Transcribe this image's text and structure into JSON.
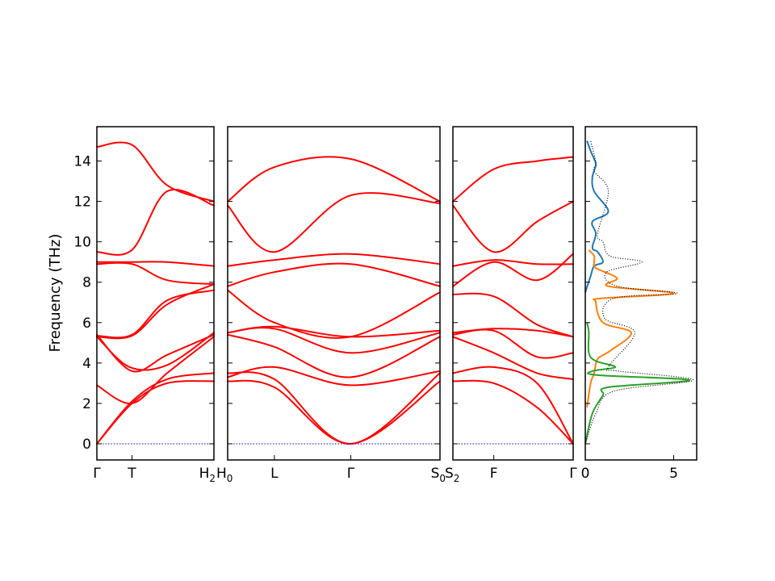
{
  "chart_data": [
    {
      "type": "line",
      "title": "",
      "ylabel": "Frequency (THz)",
      "ylim": [
        -0.8,
        15.7
      ],
      "yticks": [
        0,
        2,
        4,
        6,
        8,
        10,
        12,
        14
      ],
      "segments": [
        {
          "path": [
            "Γ",
            "T",
            "H_2"
          ],
          "k_ticks": [
            {
              "label": "Γ",
              "k": 0
            },
            {
              "label": "T",
              "k": 0.3
            },
            {
              "label": "H_2",
              "k": 1
            }
          ],
          "bands": [
            {
              "k": [
                0,
                0.3,
                0.6,
                1
              ],
              "f": [
                0,
                2.0,
                3.0,
                3.1
              ]
            },
            {
              "k": [
                0,
                0.3,
                0.6,
                1
              ],
              "f": [
                0,
                2.1,
                3.2,
                3.5
              ]
            },
            {
              "k": [
                0,
                0.3,
                0.6,
                1
              ],
              "f": [
                2.9,
                2.0,
                3.5,
                5.3
              ]
            },
            {
              "k": [
                0,
                0.28,
                0.6,
                1
              ],
              "f": [
                5.3,
                3.8,
                3.9,
                5.5
              ]
            },
            {
              "k": [
                0,
                0.3,
                0.6,
                1
              ],
              "f": [
                5.4,
                3.6,
                4.4,
                5.4
              ]
            },
            {
              "k": [
                0,
                0.3,
                0.6,
                1
              ],
              "f": [
                5.3,
                5.35,
                6.9,
                7.9
              ]
            },
            {
              "k": [
                0,
                0.3,
                0.6,
                1
              ],
              "f": [
                5.35,
                5.4,
                7.1,
                7.6
              ]
            },
            {
              "k": [
                0,
                0.3,
                0.6,
                1
              ],
              "f": [
                8.9,
                8.9,
                8.1,
                7.9
              ]
            },
            {
              "k": [
                0,
                0.3,
                0.6,
                1
              ],
              "f": [
                9.0,
                9.0,
                9.0,
                8.8
              ]
            },
            {
              "k": [
                0,
                0.3,
                0.6,
                1
              ],
              "f": [
                9.5,
                9.6,
                12.5,
                11.8
              ]
            },
            {
              "k": [
                0,
                0.3,
                0.6,
                1
              ],
              "f": [
                14.7,
                14.8,
                12.8,
                12.0
              ]
            }
          ]
        },
        {
          "path": [
            "H_0",
            "L",
            "Γ",
            "S_0"
          ],
          "k_ticks": [
            {
              "label": "H_0",
              "k": 0
            },
            {
              "label": "L",
              "k": 0.22
            },
            {
              "label": "Γ",
              "k": 0.58
            },
            {
              "label": "S_0",
              "k": 1
            }
          ],
          "bands": [
            {
              "k": [
                0,
                0.22,
                0.58,
                1
              ],
              "f": [
                3.1,
                2.8,
                0,
                3.1
              ]
            },
            {
              "k": [
                0,
                0.22,
                0.58,
                1
              ],
              "f": [
                3.5,
                3.2,
                0,
                3.5
              ]
            },
            {
              "k": [
                0,
                0.22,
                0.58,
                1
              ],
              "f": [
                3.3,
                3.8,
                2.9,
                3.6
              ]
            },
            {
              "k": [
                0,
                0.22,
                0.58,
                1
              ],
              "f": [
                5.4,
                4.8,
                3.3,
                5.3
              ]
            },
            {
              "k": [
                0,
                0.22,
                0.58,
                1
              ],
              "f": [
                5.5,
                5.7,
                4.5,
                5.5
              ]
            },
            {
              "k": [
                0,
                0.22,
                0.58,
                1
              ],
              "f": [
                5.5,
                5.8,
                5.3,
                5.6
              ]
            },
            {
              "k": [
                0,
                0.22,
                0.58,
                1
              ],
              "f": [
                7.6,
                6.0,
                5.3,
                7.5
              ]
            },
            {
              "k": [
                0,
                0.22,
                0.58,
                1
              ],
              "f": [
                7.8,
                8.5,
                8.9,
                7.8
              ]
            },
            {
              "k": [
                0,
                0.22,
                0.58,
                1
              ],
              "f": [
                8.8,
                9.1,
                9.4,
                8.9
              ]
            },
            {
              "k": [
                0,
                0.22,
                0.58,
                1
              ],
              "f": [
                11.8,
                9.5,
                12.3,
                11.9
              ]
            },
            {
              "k": [
                0,
                0.22,
                0.58,
                1
              ],
              "f": [
                12.0,
                13.7,
                14.1,
                12.0
              ]
            }
          ]
        },
        {
          "path": [
            "S_2",
            "F",
            "Γ"
          ],
          "k_ticks": [
            {
              "label": "S_2",
              "k": 0
            },
            {
              "label": "F",
              "k": 0.34
            },
            {
              "label": "Γ",
              "k": 1
            }
          ],
          "bands": [
            {
              "k": [
                0,
                0.34,
                0.7,
                1
              ],
              "f": [
                3.1,
                3.0,
                1.8,
                0
              ]
            },
            {
              "k": [
                0,
                0.34,
                0.7,
                1
              ],
              "f": [
                3.5,
                3.8,
                3.0,
                0
              ]
            },
            {
              "k": [
                0,
                0.34,
                0.7,
                1
              ],
              "f": [
                5.3,
                4.5,
                3.5,
                3.2
              ]
            },
            {
              "k": [
                0,
                0.34,
                0.7,
                1
              ],
              "f": [
                5.4,
                5.6,
                4.3,
                4.5
              ]
            },
            {
              "k": [
                0,
                0.34,
                0.7,
                1
              ],
              "f": [
                5.5,
                5.7,
                5.6,
                5.3
              ]
            },
            {
              "k": [
                0,
                0.34,
                0.7,
                1
              ],
              "f": [
                7.4,
                7.3,
                5.9,
                5.3
              ]
            },
            {
              "k": [
                0,
                0.34,
                0.7,
                1
              ],
              "f": [
                7.8,
                9.0,
                8.1,
                9.4
              ]
            },
            {
              "k": [
                0,
                0.34,
                0.7,
                1
              ],
              "f": [
                8.8,
                9.1,
                8.9,
                8.9
              ]
            },
            {
              "k": [
                0,
                0.34,
                0.7,
                1
              ],
              "f": [
                11.8,
                9.5,
                11.0,
                12.0
              ]
            },
            {
              "k": [
                0,
                0.34,
                0.7,
                1
              ],
              "f": [
                12.0,
                13.6,
                14.0,
                14.2
              ]
            }
          ]
        }
      ],
      "zero_line": {
        "value": 0,
        "color": "#0000ff"
      },
      "colors": {
        "bands": "#ff0000"
      }
    },
    {
      "type": "line",
      "title": "",
      "xlim": [
        0,
        6.3
      ],
      "xticks": [
        0,
        5
      ],
      "ylim": [
        -0.8,
        15.7
      ],
      "series": [
        {
          "color": "#1f77b4",
          "x": [
            0,
            0.3,
            0.5,
            1.0,
            0.7,
            0.4,
            0.6,
            0.4,
            1.3,
            0.5,
            0.4,
            0.6,
            0.5,
            0.3,
            0.1
          ],
          "f": [
            7.5,
            8.3,
            8.8,
            9.0,
            9.5,
            9.7,
            10.4,
            11.0,
            11.5,
            12.5,
            13.2,
            13.8,
            14.1,
            14.5,
            15.0
          ]
        },
        {
          "color": "#ff7f0e",
          "x": [
            0.1,
            0.3,
            0.5,
            0.7,
            1.4,
            2.6,
            1.0,
            0.6,
            0.9,
            5.0,
            1.3,
            1.8,
            0.6,
            0.5,
            0.5,
            0.2
          ],
          "f": [
            1.8,
            3.0,
            3.5,
            4.2,
            4.6,
            5.5,
            6.0,
            7.0,
            7.2,
            7.45,
            7.8,
            8.2,
            8.7,
            9.0,
            9.3,
            9.6
          ]
        },
        {
          "color": "#2ca02c",
          "x": [
            0,
            0.4,
            1.0,
            1.3,
            5.9,
            0.7,
            0.4,
            1.7,
            0.6,
            0.2,
            0.2,
            0.1
          ],
          "f": [
            0,
            1.5,
            2.4,
            2.8,
            3.15,
            3.4,
            3.6,
            3.8,
            4.1,
            4.5,
            5.5,
            6.0
          ]
        },
        {
          "color": "#000000",
          "style": "dotted",
          "x": [
            0,
            0.6,
            1.6,
            6.1,
            1.9,
            1.3,
            2.8,
            1.1,
            1.6,
            5.2,
            1.8,
            1.2,
            3.2,
            1.4,
            1.0,
            0.7,
            1.3,
            0.5,
            0.6,
            0.3
          ],
          "f": [
            0,
            1.5,
            2.6,
            3.15,
            3.6,
            3.8,
            5.5,
            6.2,
            7.2,
            7.45,
            7.8,
            8.5,
            9.0,
            9.3,
            10.0,
            10.4,
            12.5,
            13.5,
            13.9,
            15.0
          ]
        }
      ]
    }
  ]
}
